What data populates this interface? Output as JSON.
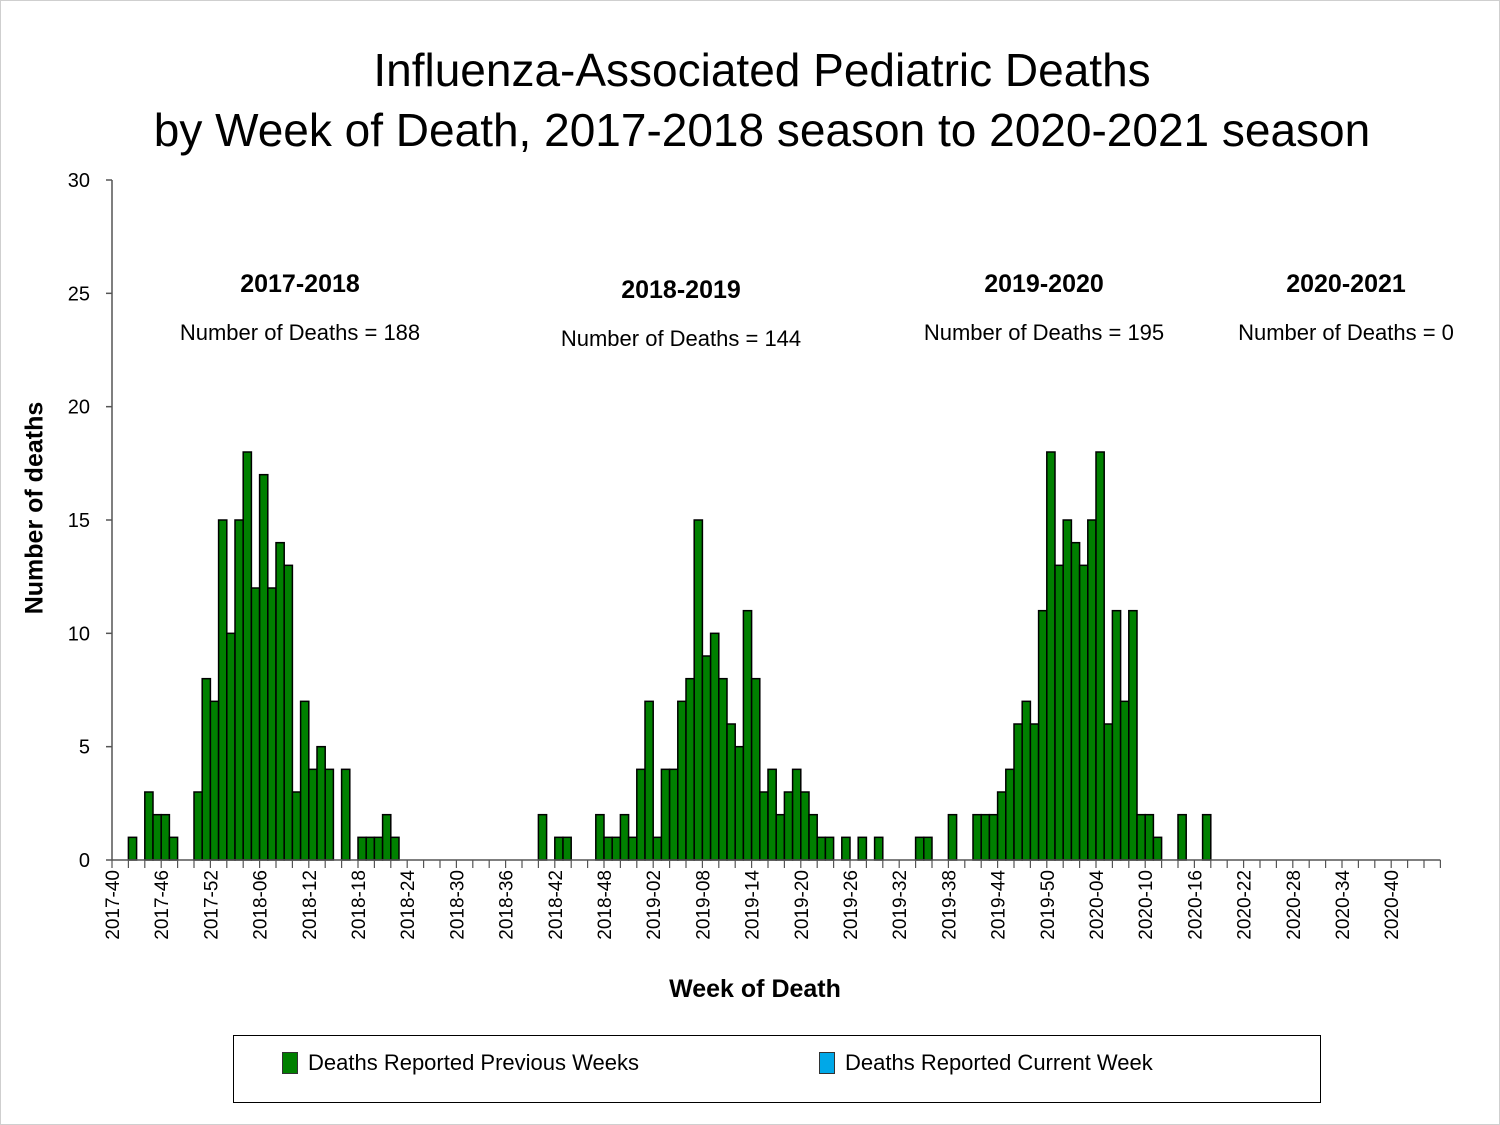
{
  "chart_data": {
    "type": "bar",
    "title": "Influenza-Associated Pediatric Deaths",
    "subtitle": "by Week of Death, 2017-2018 season to 2020-2021 season",
    "xlabel": "Week of Death",
    "ylabel": "Number of deaths",
    "ylim": [
      0,
      30
    ],
    "yticks": [
      0,
      5,
      10,
      15,
      20,
      25,
      30
    ],
    "grid": false,
    "legend_position": "bottom",
    "x_start_week": "2017-40",
    "xtick_labels": [
      "2017-40",
      "2017-46",
      "2017-52",
      "2018-06",
      "2018-12",
      "2018-18",
      "2018-24",
      "2018-30",
      "2018-36",
      "2018-42",
      "2018-48",
      "2019-02",
      "2019-08",
      "2019-14",
      "2019-20",
      "2019-26",
      "2019-32",
      "2019-38",
      "2019-44",
      "2019-50",
      "2020-04",
      "2020-10",
      "2020-16",
      "2020-22",
      "2020-28",
      "2020-34",
      "2020-40"
    ],
    "series": [
      {
        "name": "Deaths Reported Previous Weeks",
        "color": "#008000",
        "values": [
          0,
          0,
          1,
          0,
          3,
          2,
          2,
          1,
          0,
          0,
          3,
          8,
          7,
          15,
          10,
          15,
          18,
          12,
          17,
          12,
          14,
          13,
          3,
          7,
          4,
          5,
          4,
          0,
          4,
          0,
          1,
          1,
          1,
          2,
          1,
          0,
          0,
          0,
          0,
          0,
          0,
          0,
          0,
          0,
          0,
          0,
          0,
          0,
          0,
          0,
          0,
          0,
          2,
          0,
          1,
          1,
          0,
          0,
          0,
          2,
          1,
          1,
          2,
          1,
          4,
          7,
          1,
          4,
          4,
          7,
          8,
          15,
          9,
          10,
          8,
          6,
          5,
          11,
          8,
          3,
          4,
          2,
          3,
          4,
          3,
          2,
          1,
          1,
          0,
          1,
          0,
          1,
          0,
          1,
          0,
          0,
          0,
          0,
          1,
          1,
          0,
          0,
          2,
          0,
          0,
          2,
          2,
          2,
          3,
          4,
          6,
          7,
          6,
          11,
          18,
          13,
          15,
          14,
          13,
          15,
          18,
          6,
          11,
          7,
          11,
          2,
          2,
          1,
          0,
          0,
          2,
          0,
          0,
          2,
          0,
          0,
          0,
          0,
          0,
          0,
          0,
          0,
          0,
          0,
          0,
          0,
          0,
          0,
          0,
          0,
          0,
          0,
          0,
          0,
          0,
          0,
          0,
          0,
          0,
          0,
          0,
          0
        ]
      },
      {
        "name": "Deaths Reported Current Week",
        "color": "#00a8e8",
        "values": []
      }
    ],
    "annotations": [
      {
        "season": "2017-2018",
        "text": "Number of Deaths = 188"
      },
      {
        "season": "2018-2019",
        "text": "Number of Deaths = 144"
      },
      {
        "season": "2019-2020",
        "text": "Number of Deaths = 195"
      },
      {
        "season": "2020-2021",
        "text": "Number of Deaths = 0"
      }
    ]
  },
  "legend": {
    "previous_label": "Deaths Reported Previous Weeks",
    "current_label": "Deaths Reported Current Week",
    "previous_color": "#008000",
    "current_color": "#00a8e8"
  }
}
